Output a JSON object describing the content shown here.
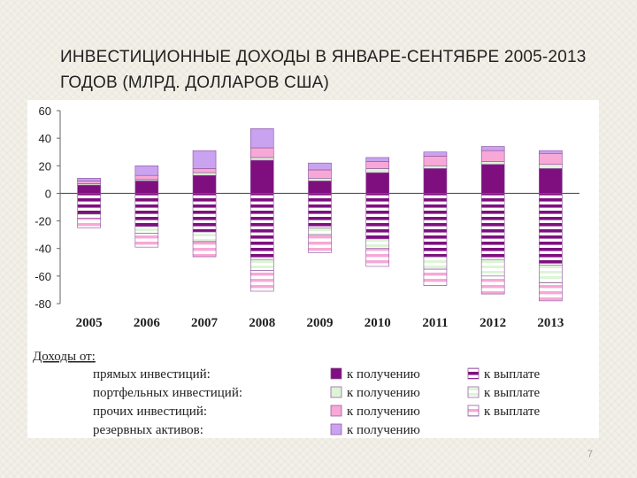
{
  "slide": {
    "title": "ИНВЕСТИЦИОННЫЕ ДОХОДЫ В ЯНВАРЕ-СЕНТЯБРЕ 2005-2013 ГОДОВ (МЛРД. ДОЛЛАРОВ США)",
    "page_number": "7"
  },
  "colors": {
    "direct_recv": "#7f0f7f",
    "direct_pay_stripe": "#7f0f7f",
    "portfolio": "#ddf5d6",
    "other": "#f7a8d6",
    "reserve": "#c9a3f0",
    "border": "#8a4f9a"
  },
  "chart_data": {
    "type": "bar",
    "stacked": true,
    "title": "",
    "xlabel": "",
    "ylabel": "",
    "ylim": [
      -80,
      60
    ],
    "yticks": [
      60,
      40,
      20,
      0,
      -20,
      -40,
      -60,
      -80
    ],
    "categories": [
      "2005",
      "2006",
      "2007",
      "2008",
      "2009",
      "2010",
      "2011",
      "2012",
      "2013"
    ],
    "series": [
      {
        "name": "прямых инвестиций — к получению",
        "key": "direct_recv",
        "values": [
          6,
          9,
          13,
          24,
          9,
          15,
          18,
          21,
          18
        ]
      },
      {
        "name": "портфельных инвестиций — к получению",
        "key": "port_recv",
        "values": [
          1,
          1,
          2,
          2,
          2,
          3,
          2,
          2,
          3
        ]
      },
      {
        "name": "прочих инвестиций — к получению",
        "key": "other_recv",
        "values": [
          2,
          3,
          3,
          7,
          6,
          5,
          7,
          8,
          8
        ]
      },
      {
        "name": "резервных активов — к получению",
        "key": "reserve_recv",
        "values": [
          2,
          7,
          13,
          14,
          5,
          3,
          3,
          3,
          2
        ]
      },
      {
        "name": "прямых инвестиций — к выплате",
        "key": "direct_pay",
        "values": [
          -15,
          -24,
          -28,
          -48,
          -25,
          -33,
          -46,
          -48,
          -52
        ]
      },
      {
        "name": "портфельных инвестиций — к выплате",
        "key": "port_pay",
        "values": [
          -3,
          -5,
          -7,
          -8,
          -5,
          -7,
          -9,
          -12,
          -13
        ]
      },
      {
        "name": "прочих инвестиций — к выплате",
        "key": "other_pay",
        "values": [
          -7,
          -10,
          -11,
          -15,
          -13,
          -13,
          -12,
          -13,
          -13
        ]
      }
    ],
    "legend": {
      "header": "Доходы от:",
      "rows": [
        {
          "label": "прямых инвестиций:",
          "recv_label": "к получению",
          "pay_label": "к выплате",
          "recv_key": "direct_recv",
          "pay_key": "direct_pay"
        },
        {
          "label": "портфельных инвестиций:",
          "recv_label": "к получению",
          "pay_label": "к выплате",
          "recv_key": "port_recv",
          "pay_key": "port_pay"
        },
        {
          "label": "прочих инвестиций:",
          "recv_label": "к получению",
          "pay_label": "к выплате",
          "recv_key": "other_recv",
          "pay_key": "other_pay"
        },
        {
          "label": "резервных активов:",
          "recv_label": "к получению",
          "pay_label": "",
          "recv_key": "reserve_recv",
          "pay_key": ""
        }
      ]
    }
  }
}
